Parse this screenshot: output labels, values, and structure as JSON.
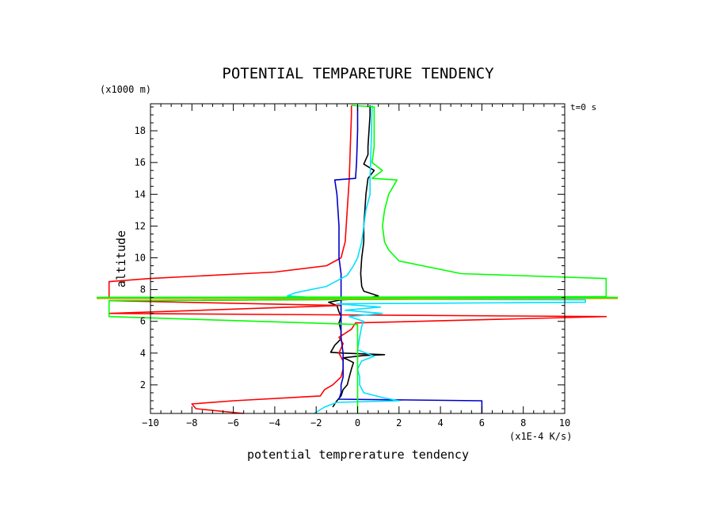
{
  "chart_data": {
    "type": "line",
    "title": "POTENTIAL TEMPARETURE TENDENCY",
    "xlabel": "potential temprerature tendency",
    "ylabel": "altitude",
    "x_units": "(x1E-4 K/s)",
    "y_units": "(x1000 m)",
    "annotation": "t=0 s",
    "xlim": [
      -10,
      10
    ],
    "ylim": [
      0.2,
      19.7
    ],
    "x_ticks": [
      -10,
      -8,
      -6,
      -4,
      -2,
      0,
      2,
      4,
      6,
      8,
      10
    ],
    "x_tick_labels": [
      "−10",
      "−8",
      "−6",
      "−4",
      "−2",
      "0",
      "2",
      "4",
      "6",
      "8",
      "10"
    ],
    "y_ticks": [
      2,
      4,
      6,
      8,
      10,
      12,
      14,
      16,
      18
    ],
    "y_tick_labels": [
      "2",
      "4",
      "6",
      "8",
      "10",
      "12",
      "14",
      "16",
      "18"
    ],
    "series": [
      {
        "name": "black",
        "color": "#000000",
        "points": [
          [
            -1.2,
            0.6
          ],
          [
            -1.1,
            0.8
          ],
          [
            -1.0,
            1.0
          ],
          [
            -0.8,
            1.3
          ],
          [
            -0.7,
            1.7
          ],
          [
            -0.5,
            2.0
          ],
          [
            -0.4,
            2.5
          ],
          [
            -0.3,
            3.0
          ],
          [
            -0.2,
            3.4
          ],
          [
            -0.5,
            3.6
          ],
          [
            -0.7,
            3.7
          ],
          [
            0.3,
            3.85
          ],
          [
            1.3,
            3.9
          ],
          [
            -0.7,
            4.0
          ],
          [
            -1.3,
            4.05
          ],
          [
            -1.1,
            4.5
          ],
          [
            -0.8,
            4.9
          ],
          [
            -0.8,
            5.4
          ],
          [
            -0.9,
            5.9
          ],
          [
            -0.8,
            6.3
          ],
          [
            -0.9,
            6.6
          ],
          [
            -1.0,
            7.0
          ],
          [
            -1.4,
            7.2
          ],
          [
            -0.8,
            7.35
          ],
          [
            0.2,
            7.4
          ],
          [
            1.0,
            7.6
          ],
          [
            0.3,
            7.9
          ],
          [
            0.2,
            8.2
          ],
          [
            0.15,
            9.0
          ],
          [
            0.2,
            10.0
          ],
          [
            0.3,
            11.0
          ],
          [
            0.3,
            12.0
          ],
          [
            0.35,
            13.0
          ],
          [
            0.4,
            14.0
          ],
          [
            0.5,
            15.0
          ],
          [
            0.8,
            15.5
          ],
          [
            0.3,
            15.9
          ],
          [
            0.5,
            16.5
          ],
          [
            0.5,
            17.0
          ],
          [
            0.55,
            18.0
          ],
          [
            0.6,
            19.0
          ],
          [
            0.6,
            19.6
          ]
        ]
      },
      {
        "name": "red",
        "color": "#ff0000",
        "points": [
          [
            -5.5,
            0.2
          ],
          [
            -7.8,
            0.5
          ],
          [
            -8.0,
            0.8
          ],
          [
            -6.0,
            1.0
          ],
          [
            -1.8,
            1.3
          ],
          [
            -1.6,
            1.7
          ],
          [
            -1.2,
            2.0
          ],
          [
            -0.8,
            2.5
          ],
          [
            -0.7,
            3.0
          ],
          [
            -0.7,
            3.5
          ],
          [
            -0.9,
            4.0
          ],
          [
            -0.7,
            4.6
          ],
          [
            -0.9,
            5.0
          ],
          [
            -0.3,
            5.5
          ],
          [
            -0.1,
            5.9
          ],
          [
            12,
            6.3
          ],
          [
            -12,
            6.5
          ],
          [
            -0.8,
            7.0
          ],
          [
            -12,
            7.3
          ],
          [
            12,
            7.45
          ],
          [
            -12,
            7.5
          ],
          [
            -12,
            8.5
          ],
          [
            -10,
            8.7
          ],
          [
            -4,
            9.1
          ],
          [
            -1.5,
            9.5
          ],
          [
            -0.8,
            10.0
          ],
          [
            -0.6,
            11.0
          ],
          [
            -0.5,
            13.0
          ],
          [
            -0.4,
            15.0
          ],
          [
            -0.35,
            17.0
          ],
          [
            -0.3,
            19.0
          ],
          [
            -0.3,
            19.6
          ]
        ]
      },
      {
        "name": "blue",
        "color": "#0000c8",
        "points": [
          [
            6.0,
            0.2
          ],
          [
            6.0,
            1.0
          ],
          [
            -0.9,
            1.1
          ],
          [
            -0.8,
            1.5
          ],
          [
            -0.8,
            2.0
          ],
          [
            -0.7,
            2.5
          ],
          [
            -0.7,
            3.0
          ],
          [
            -0.7,
            4.0
          ],
          [
            -0.8,
            5.0
          ],
          [
            -0.8,
            6.0
          ],
          [
            -0.8,
            7.0
          ],
          [
            -0.8,
            8.0
          ],
          [
            -0.8,
            9.0
          ],
          [
            -0.9,
            10.0
          ],
          [
            -0.9,
            12.0
          ],
          [
            -1.0,
            14.0
          ],
          [
            -1.1,
            14.9
          ],
          [
            -0.1,
            15.0
          ],
          [
            -0.05,
            16.0
          ],
          [
            0.0,
            18.0
          ],
          [
            0.0,
            19.6
          ]
        ]
      },
      {
        "name": "cyan",
        "color": "#00e0ff",
        "points": [
          [
            -2.1,
            0.2
          ],
          [
            -1.6,
            0.6
          ],
          [
            -1.0,
            0.9
          ],
          [
            2.0,
            1.0
          ],
          [
            1.2,
            1.2
          ],
          [
            0.3,
            1.5
          ],
          [
            0.1,
            2.0
          ],
          [
            0.1,
            2.5
          ],
          [
            0.0,
            3.0
          ],
          [
            0.2,
            3.5
          ],
          [
            0.8,
            3.8
          ],
          [
            0.0,
            4.2
          ],
          [
            0.1,
            5.0
          ],
          [
            0.2,
            5.7
          ],
          [
            0.3,
            6.0
          ],
          [
            -0.4,
            6.3
          ],
          [
            1.2,
            6.5
          ],
          [
            -0.6,
            6.7
          ],
          [
            1.1,
            6.9
          ],
          [
            -1.0,
            7.1
          ],
          [
            11.0,
            7.2
          ],
          [
            11.0,
            7.35
          ],
          [
            -1.0,
            7.4
          ],
          [
            -3.4,
            7.6
          ],
          [
            -3.0,
            7.8
          ],
          [
            -1.5,
            8.2
          ],
          [
            -0.5,
            8.9
          ],
          [
            -0.2,
            9.5
          ],
          [
            0.0,
            10.0
          ],
          [
            0.2,
            11.0
          ],
          [
            0.3,
            12.0
          ],
          [
            0.4,
            13.0
          ],
          [
            0.6,
            14.0
          ],
          [
            0.6,
            15.0
          ],
          [
            0.65,
            17.0
          ],
          [
            0.7,
            19.6
          ]
        ]
      },
      {
        "name": "green",
        "color": "#00ff00",
        "points": [
          [
            0.0,
            0.2
          ],
          [
            0.0,
            2.0
          ],
          [
            0.0,
            4.0
          ],
          [
            0.0,
            5.0
          ],
          [
            0.0,
            5.8
          ],
          [
            -12,
            6.3
          ],
          [
            -12,
            7.3
          ],
          [
            12,
            7.45
          ],
          [
            -12,
            7.5
          ],
          [
            12,
            7.55
          ],
          [
            12,
            8.7
          ],
          [
            5,
            9.0
          ],
          [
            2,
            9.8
          ],
          [
            1.5,
            10.5
          ],
          [
            1.3,
            11.0
          ],
          [
            1.2,
            12.0
          ],
          [
            1.3,
            13.0
          ],
          [
            1.5,
            14.0
          ],
          [
            1.9,
            14.9
          ],
          [
            0.7,
            15.0
          ],
          [
            1.2,
            15.5
          ],
          [
            0.7,
            16.0
          ],
          [
            0.8,
            17.0
          ],
          [
            0.8,
            19.0
          ],
          [
            0.8,
            19.5
          ],
          [
            -0.3,
            19.6
          ]
        ]
      }
    ],
    "overlay_lines": [
      {
        "name": "orange-horizontal",
        "color": "#ff8c00",
        "y": 7.45
      },
      {
        "name": "green-horizontal",
        "color": "#00ff00",
        "y": 7.5
      }
    ]
  }
}
